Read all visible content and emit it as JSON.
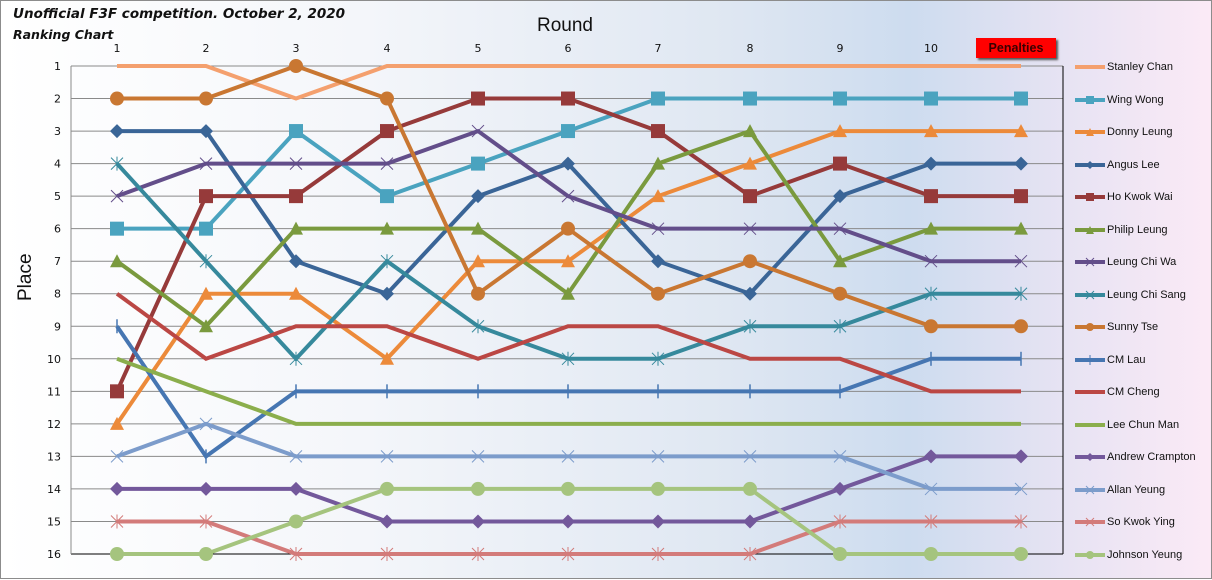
{
  "header": {
    "title": "Unofficial F3F competition. October 2, 2020",
    "subtitle": "Ranking Chart",
    "penalties_label": "Penalties"
  },
  "chart_data": {
    "type": "line",
    "title": "Unofficial F3F competition. October 2, 2020",
    "subtitle": "Ranking Chart",
    "xlabel": "Round",
    "ylabel": "Place",
    "categories": [
      "1",
      "2",
      "3",
      "4",
      "5",
      "6",
      "7",
      "8",
      "9",
      "10",
      "Penalties"
    ],
    "y_ticks": [
      "1",
      "2",
      "3",
      "4",
      "5",
      "6",
      "7",
      "8",
      "9",
      "10",
      "11",
      "12",
      "13",
      "14",
      "15",
      "16"
    ],
    "ylim": [
      16,
      1
    ],
    "y_inverted": true,
    "grid": true,
    "legend_position": "right",
    "series": [
      {
        "name": "Stanley Chan",
        "color": "#f4a06e",
        "marker": "none",
        "values": [
          1,
          1,
          2,
          1,
          1,
          1,
          1,
          1,
          1,
          1,
          1
        ]
      },
      {
        "name": "Wing Wong",
        "color": "#4aa3bf",
        "marker": "square",
        "values": [
          6,
          6,
          3,
          5,
          4,
          3,
          2,
          2,
          2,
          2,
          2
        ]
      },
      {
        "name": "Donny Leung",
        "color": "#ec8a3a",
        "marker": "triangle",
        "values": [
          12,
          8,
          8,
          10,
          7,
          7,
          5,
          4,
          3,
          3,
          3
        ]
      },
      {
        "name": "Angus Lee",
        "color": "#3a6597",
        "marker": "diamond",
        "values": [
          3,
          3,
          7,
          8,
          5,
          4,
          7,
          8,
          5,
          4,
          4
        ]
      },
      {
        "name": "Ho Kwok Wai",
        "color": "#963a3a",
        "marker": "square",
        "values": [
          11,
          5,
          5,
          3,
          2,
          2,
          3,
          5,
          4,
          5,
          5
        ]
      },
      {
        "name": "Philip Leung",
        "color": "#7a9a3e",
        "marker": "triangle",
        "values": [
          7,
          9,
          6,
          6,
          6,
          8,
          4,
          3,
          7,
          6,
          6
        ]
      },
      {
        "name": "Leung Chi Wa",
        "color": "#634e8a",
        "marker": "x",
        "values": [
          5,
          4,
          4,
          4,
          3,
          5,
          6,
          6,
          6,
          7,
          7
        ]
      },
      {
        "name": "Leung Chi Sang",
        "color": "#36899c",
        "marker": "star",
        "values": [
          4,
          7,
          10,
          7,
          9,
          10,
          10,
          9,
          9,
          8,
          8
        ]
      },
      {
        "name": "Sunny Tse",
        "color": "#c97732",
        "marker": "circle",
        "values": [
          2,
          2,
          1,
          2,
          8,
          6,
          8,
          7,
          8,
          9,
          9
        ]
      },
      {
        "name": "CM Lau",
        "color": "#4676b2",
        "marker": "plus",
        "values": [
          9,
          13,
          11,
          11,
          11,
          11,
          11,
          11,
          11,
          10,
          10
        ]
      },
      {
        "name": "CM Cheng",
        "color": "#bb4744",
        "marker": "dash",
        "values": [
          8,
          10,
          9,
          9,
          10,
          9,
          9,
          10,
          10,
          11,
          11
        ]
      },
      {
        "name": "Lee Chun Man",
        "color": "#8bae4c",
        "marker": "dash",
        "values": [
          10,
          11,
          12,
          12,
          12,
          12,
          12,
          12,
          12,
          12,
          12
        ]
      },
      {
        "name": "Andrew Crampton",
        "color": "#73589b",
        "marker": "diamond",
        "values": [
          14,
          14,
          14,
          15,
          15,
          15,
          15,
          15,
          14,
          13,
          13
        ]
      },
      {
        "name": "Allan Yeung",
        "color": "#7c9ccb",
        "marker": "x",
        "values": [
          13,
          12,
          13,
          13,
          13,
          13,
          13,
          13,
          13,
          14,
          14
        ]
      },
      {
        "name": "So Kwok Ying",
        "color": "#d37b7a",
        "marker": "star",
        "values": [
          15,
          15,
          16,
          16,
          16,
          16,
          16,
          16,
          15,
          15,
          15
        ]
      },
      {
        "name": "Johnson Yeung",
        "color": "#a5c47e",
        "marker": "circle",
        "values": [
          16,
          16,
          15,
          14,
          14,
          14,
          14,
          14,
          16,
          16,
          16
        ]
      }
    ]
  }
}
